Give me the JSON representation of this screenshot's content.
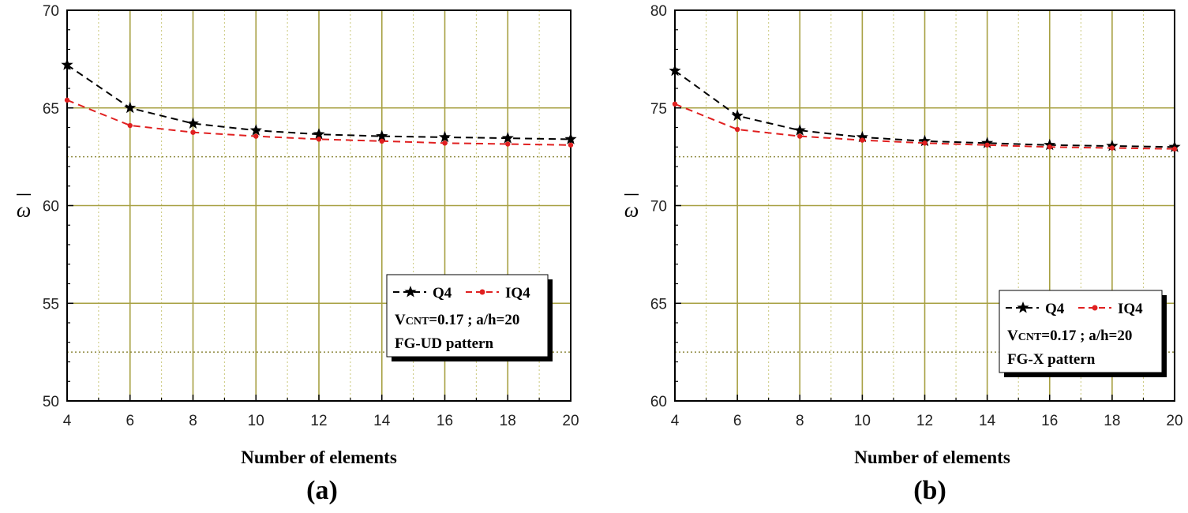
{
  "chart_data": [
    {
      "type": "line",
      "panel_label": "(a)",
      "xlabel": "Number of elements",
      "ylabel": "ω",
      "x": [
        4,
        6,
        8,
        10,
        12,
        14,
        16,
        18,
        20
      ],
      "xlim": [
        4,
        20
      ],
      "ylim": [
        50,
        70
      ],
      "xticks": [
        4,
        6,
        8,
        10,
        12,
        14,
        16,
        18,
        20
      ],
      "yticks": [
        50,
        55,
        60,
        65,
        70
      ],
      "grid": true,
      "series": [
        {
          "name": "Q4",
          "color": "#000000",
          "marker": "star",
          "values": [
            67.2,
            65.0,
            64.2,
            63.85,
            63.65,
            63.55,
            63.5,
            63.45,
            63.4
          ]
        },
        {
          "name": "IQ4",
          "color": "#e02020",
          "marker": "dot",
          "values": [
            65.4,
            64.1,
            63.75,
            63.55,
            63.4,
            63.3,
            63.2,
            63.15,
            63.1
          ]
        }
      ],
      "reference_lines": [
        62.5,
        52.5
      ],
      "legend": {
        "position": "bottom-right",
        "entries": [
          "Q4",
          "IQ4"
        ],
        "param_main": "V",
        "param_sub": "CNT",
        "param_rest": "=0.17 ; a/h=20",
        "pattern": "FG-UD pattern"
      }
    },
    {
      "type": "line",
      "panel_label": "(b)",
      "xlabel": "Number of elements",
      "ylabel": "ω",
      "x": [
        4,
        6,
        8,
        10,
        12,
        14,
        16,
        18,
        20
      ],
      "xlim": [
        4,
        20
      ],
      "ylim": [
        60,
        80
      ],
      "xticks": [
        4,
        6,
        8,
        10,
        12,
        14,
        16,
        18,
        20
      ],
      "yticks": [
        60,
        65,
        70,
        75,
        80
      ],
      "grid": true,
      "series": [
        {
          "name": "Q4",
          "color": "#000000",
          "marker": "star",
          "values": [
            76.9,
            74.6,
            73.85,
            73.5,
            73.3,
            73.2,
            73.1,
            73.05,
            73.0
          ]
        },
        {
          "name": "IQ4",
          "color": "#e02020",
          "marker": "dot",
          "values": [
            75.2,
            73.9,
            73.55,
            73.35,
            73.2,
            73.1,
            73.0,
            72.95,
            72.9
          ]
        }
      ],
      "reference_lines": [
        72.5,
        62.5
      ],
      "legend": {
        "position": "bottom-right",
        "entries": [
          "Q4",
          "IQ4"
        ],
        "param_main": "V",
        "param_sub": "CNT",
        "param_rest": "=0.17 ; a/h=20",
        "pattern": "FG-X pattern"
      }
    }
  ]
}
